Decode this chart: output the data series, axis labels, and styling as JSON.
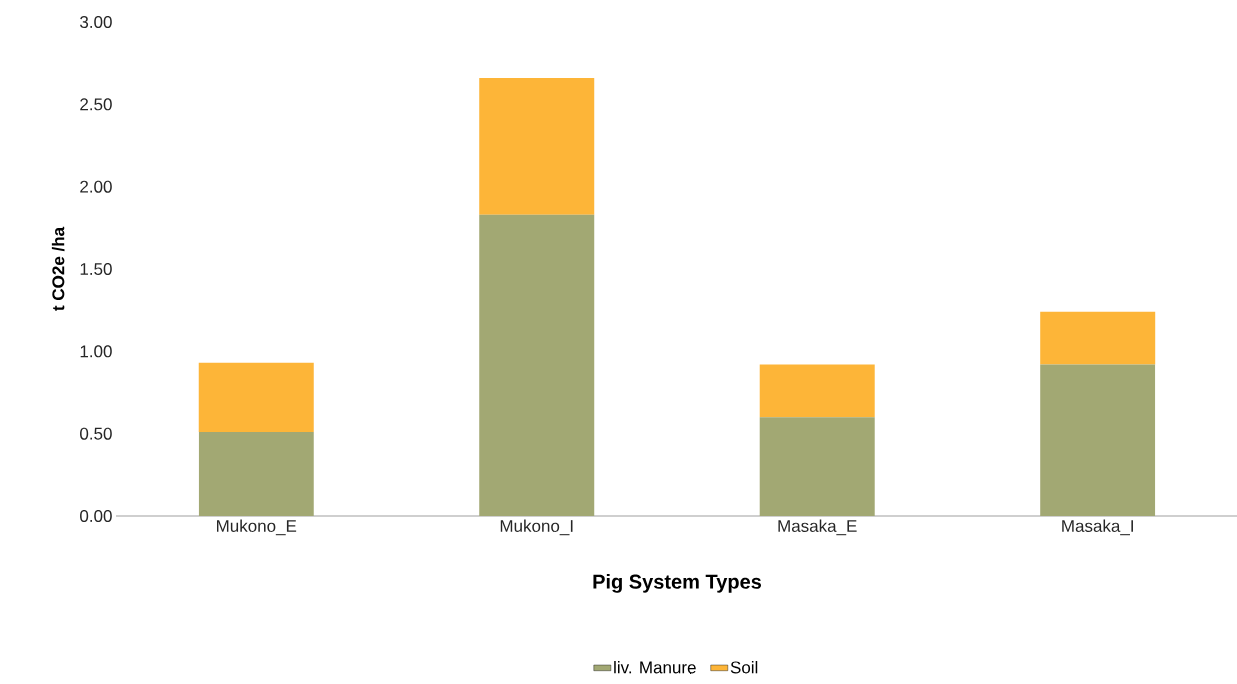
{
  "chart_data": {
    "type": "bar",
    "stacked": true,
    "xlabel": "Pig System Types",
    "ylabel": "t CO2e /ha",
    "categories": [
      "Mukono_E",
      "Mukono_I",
      "Masaka_E",
      "Masaka_I"
    ],
    "series": [
      {
        "name": "liv. Manure",
        "color": "#a2a873",
        "values": [
          0.51,
          1.83,
          0.6,
          0.92
        ]
      },
      {
        "name": "Soil",
        "color": "#fdb538",
        "values": [
          0.42,
          0.83,
          0.32,
          0.32
        ]
      }
    ],
    "ylim": [
      0,
      3
    ],
    "yticks": [
      {
        "value": 0,
        "label": "0.00"
      },
      {
        "value": 0.5,
        "label": "0.50"
      },
      {
        "value": 1,
        "label": "1.00"
      },
      {
        "value": 1.5,
        "label": "1.50"
      },
      {
        "value": 2,
        "label": "2.00"
      },
      {
        "value": 2.5,
        "label": "2.50"
      },
      {
        "value": 3,
        "label": "3.00"
      }
    ],
    "grid": false,
    "legend": "bottom"
  }
}
